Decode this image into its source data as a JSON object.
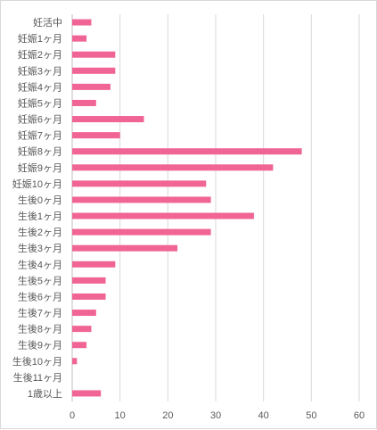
{
  "chart_data": {
    "type": "bar",
    "orientation": "horizontal",
    "categories": [
      "妊活中",
      "妊娠1ヶ月",
      "妊娠2ヶ月",
      "妊娠3ヶ月",
      "妊娠4ヶ月",
      "妊娠5ヶ月",
      "妊娠6ヶ月",
      "妊娠7ヶ月",
      "妊娠8ヶ月",
      "妊娠9ヶ月",
      "妊娠10ヶ月",
      "生後0ヶ月",
      "生後1ヶ月",
      "生後2ヶ月",
      "生後3ヶ月",
      "生後4ヶ月",
      "生後5ヶ月",
      "生後6ヶ月",
      "生後7ヶ月",
      "生後8ヶ月",
      "生後9ヶ月",
      "生後10ヶ月",
      "生後11ヶ月",
      "1歳以上"
    ],
    "values": [
      4,
      3,
      9,
      9,
      8,
      5,
      15,
      10,
      48,
      42,
      28,
      29,
      38,
      29,
      22,
      9,
      7,
      7,
      5,
      4,
      3,
      1,
      0,
      6
    ],
    "xlim": [
      0,
      60
    ],
    "xticks": [
      "0",
      "10",
      "20",
      "30",
      "40",
      "50",
      "60"
    ],
    "grid": "vertical",
    "legend": "none",
    "colors": {
      "bar": "#f06595",
      "grid": "#d9d9d9",
      "axis": "#bfbfbf",
      "text": "#595959"
    }
  }
}
